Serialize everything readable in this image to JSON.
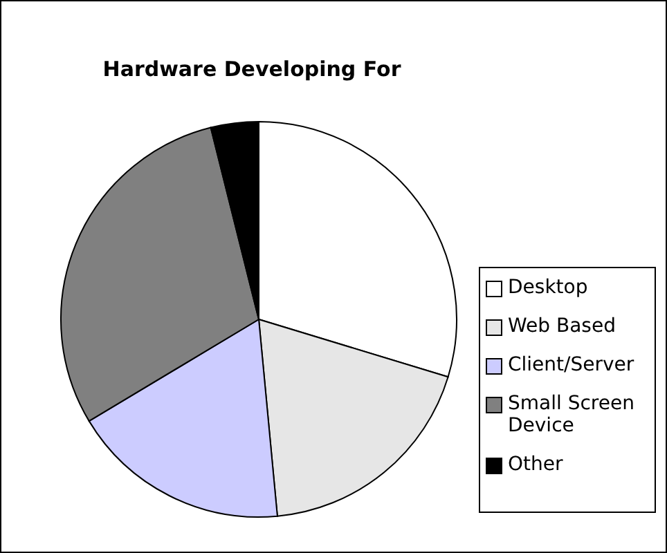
{
  "chart_data": {
    "type": "pie",
    "title": "Hardware Developing For",
    "categories": [
      "Desktop",
      "Web Based",
      "Client/Server",
      "Small Screen Device",
      "Other"
    ],
    "values": [
      29.7,
      18.8,
      17.9,
      29.7,
      3.9
    ],
    "colors": [
      "#ffffff",
      "#e6e6e6",
      "#ccccff",
      "#808080",
      "#000000"
    ],
    "legend": "right"
  }
}
